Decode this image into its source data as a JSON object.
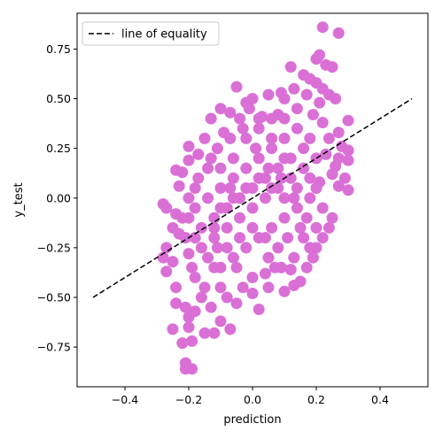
{
  "chart_data": {
    "type": "scatter",
    "title": "",
    "xlabel": "prediction",
    "ylabel": "y_test",
    "xlim": [
      -0.55,
      0.55
    ],
    "ylim": [
      -0.95,
      0.93
    ],
    "xticks": [
      -0.4,
      -0.2,
      0.0,
      0.2,
      0.4
    ],
    "xtick_labels": [
      "−0.4",
      "−0.2",
      "0.0",
      "0.2",
      "0.4"
    ],
    "yticks": [
      -0.75,
      -0.5,
      -0.25,
      0.0,
      0.25,
      0.5,
      0.75
    ],
    "ytick_labels": [
      "−0.75",
      "−0.50",
      "−0.25",
      "0.00",
      "0.25",
      "0.50",
      "0.75"
    ],
    "grid": false,
    "legend": {
      "placement": "top-left",
      "entries": [
        "line of equality"
      ]
    },
    "series": [
      {
        "name": "",
        "kind": "scatter",
        "color": "#da70d6",
        "points": [
          [
            0.22,
            0.86
          ],
          [
            0.27,
            0.83
          ],
          [
            0.21,
            0.72
          ],
          [
            0.23,
            0.67
          ],
          [
            0.25,
            0.66
          ],
          [
            0.12,
            0.66
          ],
          [
            0.2,
            0.7
          ],
          [
            0.16,
            0.62
          ],
          [
            0.18,
            0.6
          ],
          [
            0.2,
            0.58
          ],
          [
            0.22,
            0.55
          ],
          [
            0.13,
            0.55
          ],
          [
            0.24,
            0.52
          ],
          [
            0.26,
            0.5
          ],
          [
            0.09,
            0.53
          ],
          [
            0.1,
            0.5
          ],
          [
            -0.05,
            0.56
          ],
          [
            -0.02,
            0.48
          ],
          [
            0.0,
            0.5
          ],
          [
            0.05,
            0.52
          ],
          [
            -0.1,
            0.45
          ],
          [
            -0.07,
            0.43
          ],
          [
            -0.13,
            0.4
          ],
          [
            0.03,
            0.41
          ],
          [
            0.3,
            0.39
          ],
          [
            0.27,
            0.33
          ],
          [
            0.28,
            0.26
          ],
          [
            0.3,
            0.24
          ],
          [
            0.27,
            0.2
          ],
          [
            0.3,
            0.19
          ],
          [
            0.29,
            0.1
          ],
          [
            0.27,
            0.06
          ],
          [
            0.3,
            0.04
          ],
          [
            0.25,
            0.12
          ],
          [
            -0.2,
            0.26
          ],
          [
            -0.24,
            0.14
          ],
          [
            -0.22,
            0.13
          ],
          [
            -0.2,
            0.19
          ],
          [
            -0.17,
            0.22
          ],
          [
            -0.15,
            0.3
          ],
          [
            -0.23,
            0.06
          ],
          [
            -0.18,
            0.05
          ],
          [
            -0.2,
            0.0
          ],
          [
            -0.28,
            -0.03
          ],
          [
            -0.27,
            -0.05
          ],
          [
            -0.24,
            -0.08
          ],
          [
            -0.22,
            -0.1
          ],
          [
            -0.25,
            -0.15
          ],
          [
            -0.23,
            -0.18
          ],
          [
            -0.21,
            -0.2
          ],
          [
            -0.27,
            -0.25
          ],
          [
            -0.28,
            -0.3
          ],
          [
            -0.25,
            -0.32
          ],
          [
            -0.27,
            -0.37
          ],
          [
            -0.24,
            -0.45
          ],
          [
            -0.24,
            -0.53
          ],
          [
            -0.21,
            -0.55
          ],
          [
            -0.2,
            -0.6
          ],
          [
            -0.18,
            -0.57
          ],
          [
            -0.2,
            -0.65
          ],
          [
            -0.25,
            -0.66
          ],
          [
            -0.22,
            -0.73
          ],
          [
            -0.19,
            -0.72
          ],
          [
            -0.21,
            -0.83
          ],
          [
            -0.21,
            -0.86
          ],
          [
            -0.19,
            -0.86
          ],
          [
            -0.15,
            -0.68
          ],
          [
            -0.12,
            -0.68
          ],
          [
            -0.1,
            -0.62
          ],
          [
            -0.07,
            -0.66
          ],
          [
            -0.13,
            -0.55
          ],
          [
            -0.05,
            -0.53
          ],
          [
            -0.08,
            -0.5
          ],
          [
            0.02,
            -0.56
          ],
          [
            0.0,
            -0.48
          ],
          [
            0.05,
            -0.45
          ],
          [
            0.1,
            -0.47
          ],
          [
            0.13,
            -0.44
          ],
          [
            0.15,
            -0.42
          ],
          [
            0.12,
            -0.36
          ],
          [
            0.17,
            -0.35
          ],
          [
            0.19,
            -0.3
          ],
          [
            0.2,
            -0.25
          ],
          [
            0.22,
            -0.2
          ],
          [
            0.24,
            -0.15
          ],
          [
            0.25,
            -0.1
          ],
          [
            0.22,
            -0.05
          ],
          [
            0.2,
            -0.15
          ],
          [
            0.18,
            -0.25
          ],
          [
            0.09,
            -0.35
          ],
          [
            0.05,
            -0.3
          ],
          [
            -0.05,
            -0.35
          ],
          [
            -0.12,
            -0.35
          ],
          [
            -0.15,
            -0.45
          ],
          [
            -0.18,
            -0.4
          ],
          [
            -0.16,
            -0.25
          ],
          [
            -0.12,
            -0.2
          ],
          [
            -0.08,
            -0.15
          ],
          [
            -0.04,
            -0.1
          ],
          [
            0.0,
            -0.05
          ],
          [
            0.04,
            0.0
          ],
          [
            0.08,
            0.05
          ],
          [
            0.12,
            0.1
          ],
          [
            0.16,
            0.15
          ],
          [
            0.2,
            0.2
          ],
          [
            0.18,
            0.3
          ],
          [
            0.14,
            0.35
          ],
          [
            0.1,
            0.3
          ],
          [
            0.06,
            0.25
          ],
          [
            0.02,
            0.2
          ],
          [
            -0.02,
            0.15
          ],
          [
            -0.06,
            0.1
          ],
          [
            -0.1,
            0.05
          ],
          [
            -0.14,
            0.0
          ],
          [
            -0.18,
            -0.05
          ],
          [
            -0.16,
            -0.15
          ],
          [
            -0.12,
            -0.1
          ],
          [
            -0.08,
            -0.05
          ],
          [
            -0.04,
            0.0
          ],
          [
            0.0,
            0.05
          ],
          [
            0.04,
            0.1
          ],
          [
            0.08,
            0.15
          ],
          [
            0.12,
            0.2
          ],
          [
            0.16,
            0.25
          ],
          [
            0.14,
            0.45
          ],
          [
            0.08,
            0.42
          ],
          [
            -0.04,
            0.4
          ],
          [
            -0.09,
            0.33
          ],
          [
            -0.13,
            0.2
          ],
          [
            -0.1,
            0.15
          ],
          [
            -0.06,
            0.2
          ],
          [
            -0.02,
            0.3
          ],
          [
            0.02,
            0.35
          ],
          [
            0.06,
            0.4
          ],
          [
            0.1,
            0.4
          ],
          [
            0.19,
            0.42
          ],
          [
            0.22,
            0.38
          ],
          [
            0.24,
            0.3
          ],
          [
            0.23,
            0.22
          ],
          [
            0.21,
            0.08
          ],
          [
            0.18,
            0.0
          ],
          [
            0.14,
            -0.05
          ],
          [
            0.1,
            -0.1
          ],
          [
            0.06,
            -0.15
          ],
          [
            0.02,
            -0.2
          ],
          [
            -0.02,
            -0.25
          ],
          [
            -0.06,
            -0.3
          ],
          [
            -0.1,
            -0.35
          ],
          [
            -0.14,
            -0.3
          ],
          [
            -0.18,
            -0.2
          ],
          [
            -0.2,
            -0.1
          ],
          [
            -0.17,
            0.1
          ],
          [
            -0.14,
            0.15
          ],
          [
            -0.11,
            0.25
          ],
          [
            -0.07,
            0.3
          ],
          [
            -0.03,
            0.35
          ],
          [
            0.01,
            0.25
          ],
          [
            0.05,
            0.15
          ],
          [
            0.09,
            0.1
          ],
          [
            0.13,
            0.0
          ],
          [
            0.17,
            -0.1
          ],
          [
            0.16,
            -0.2
          ],
          [
            0.13,
            -0.3
          ],
          [
            0.08,
            -0.25
          ],
          [
            0.04,
            -0.2
          ],
          [
            0.0,
            -0.15
          ],
          [
            -0.04,
            -0.2
          ],
          [
            -0.08,
            -0.25
          ],
          [
            -0.12,
            -0.15
          ],
          [
            -0.1,
            -0.05
          ],
          [
            -0.06,
            0.0
          ],
          [
            -0.02,
            0.05
          ],
          [
            0.02,
            0.1
          ],
          [
            0.06,
            0.05
          ],
          [
            0.1,
            0.0
          ],
          [
            0.14,
            0.05
          ],
          [
            0.18,
            0.1
          ],
          [
            0.1,
            0.2
          ],
          [
            0.06,
            0.3
          ],
          [
            0.02,
            0.4
          ],
          [
            -0.01,
            0.45
          ],
          [
            0.0,
            -0.4
          ],
          [
            0.04,
            -0.38
          ],
          [
            -0.03,
            -0.45
          ],
          [
            -0.1,
            -0.45
          ],
          [
            -0.16,
            -0.5
          ],
          [
            -0.19,
            -0.35
          ],
          [
            -0.2,
            -0.28
          ],
          [
            0.15,
            -0.15
          ],
          [
            0.11,
            -0.2
          ],
          [
            0.07,
            -0.35
          ],
          [
            -0.07,
            0.05
          ],
          [
            -0.11,
            -0.25
          ],
          [
            0.2,
            0.05
          ],
          [
            0.26,
            0.16
          ],
          [
            0.21,
            0.48
          ],
          [
            0.17,
            0.52
          ]
        ]
      },
      {
        "name": "line of equality",
        "kind": "line",
        "style": "dashed",
        "color": "#000000",
        "points": [
          [
            -0.5,
            -0.5
          ],
          [
            0.5,
            0.5
          ]
        ]
      }
    ]
  }
}
